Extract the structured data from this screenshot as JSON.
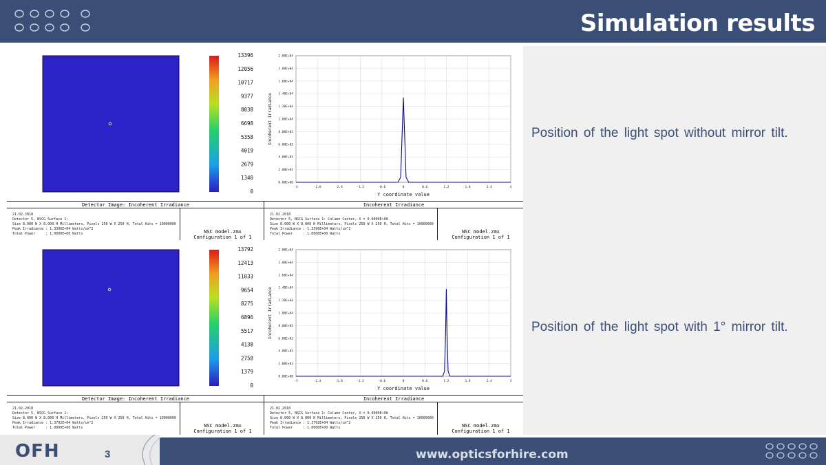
{
  "header": {
    "title": "Simulation results"
  },
  "footer": {
    "logo_text": "OFH",
    "page_number": "3",
    "website": "www.opticsforhire.com"
  },
  "descriptions": [
    "Position of the light spot without mirror tilt.",
    "Position of the light spot with 1° mirror tilt."
  ],
  "colors": {
    "bar": "#3b4e75",
    "detector_bg": "#2d22c8",
    "plot_line": "#0a0a80"
  },
  "figures": [
    {
      "colorbar_labels": [
        "13396",
        "12056",
        "10717",
        "9377",
        "8038",
        "6698",
        "5358",
        "4019",
        "2679",
        "1340",
        "0"
      ],
      "left_caption": "Detector Image: Incoherent Irradiance",
      "right_caption": "Incoherent Irradiance",
      "left_info": "21.02.2018\nDetector 5, NSCG Surface 1:\nSize 8.000 W X 8.000 H Millimeters, Pixels 250 W X 250 H, Total Hits = 10000000\nPeak Irradiance : 1.3396E+04 Watts/cm^2\nTotal Power     : 1.0000E+00 Watts",
      "right_info": "21.02.2018\nDetector 5, NSCG Surface 1: Column Center, X = 0.0000E+00\nSize 8.000 W X 8.000 H Millimeters, Pixels 250 W X 250 H, Total Hits = 10000000\nPeak Irradiance : 1.3396E+04 Watts/cm^2\nTotal Power     : 1.0000E+00 Watts",
      "file_name": "NSC model.zmx",
      "config": "Configuration 1 of 1",
      "plot": {
        "ylabel": "Incoherent Irradiance",
        "xlabel": "Y coordinate value",
        "yticks": [
          "2.00E+04",
          "1.80E+04",
          "1.60E+04",
          "1.40E+04",
          "1.20E+04",
          "1.00E+04",
          "8.00E+03",
          "6.00E+03",
          "4.00E+03",
          "2.00E+03",
          "0.00E+00"
        ],
        "xticks": [
          "-4",
          "-2.8",
          "-2.4",
          "-1.2",
          "-0.6",
          "0",
          "0.6",
          "1.2",
          "1.8",
          "2.4",
          "4"
        ]
      }
    },
    {
      "colorbar_labels": [
        "13792",
        "12413",
        "11033",
        "9654",
        "8275",
        "6896",
        "5517",
        "4138",
        "2758",
        "1379",
        "0"
      ],
      "left_caption": "Detector Image: Incoherent Irradiance",
      "right_caption": "Incoherent Irradiance",
      "left_info": "21.02.2018\nDetector 5, NSCG Surface 1:\nSize 8.000 W X 8.000 H Millimeters, Pixels 250 W X 250 H, Total Hits = 10000000\nPeak Irradiance : 1.3792E+04 Watts/cm^2\nTotal Power     : 1.0000E+00 Watts",
      "right_info": "21.02.2018\nDetector 5, NSCG Surface 1: Column Center, X = 0.0000E+00\nSize 8.000 W X 8.000 H Millimeters, Pixels 250 W X 250 H, Total Hits = 10000000\nPeak Irradiance : 1.3792E+04 Watts/cm^2\nTotal Power     : 1.0000E+00 Watts",
      "file_name": "NSC model.zmx",
      "config": "Configuration 1 of 1",
      "plot": {
        "ylabel": "Incoherent Irradiance",
        "xlabel": "Y coordinate value",
        "yticks": [
          "2.00E+04",
          "1.80E+04",
          "1.60E+04",
          "1.40E+04",
          "1.20E+04",
          "1.00E+04",
          "8.00E+03",
          "6.00E+03",
          "4.00E+03",
          "2.00E+03",
          "0.00E+00"
        ],
        "xticks": [
          "-3",
          "-2.4",
          "-1.8",
          "-1.2",
          "-0.6",
          "0",
          "0.6",
          "1.2",
          "1.8",
          "2.4",
          "3"
        ]
      }
    }
  ],
  "chart_data": [
    {
      "type": "line",
      "title": "Incoherent Irradiance",
      "xlabel": "Y coordinate value",
      "ylabel": "Incoherent Irradiance",
      "xlim": [
        -4,
        4
      ],
      "ylim": [
        0,
        20000
      ],
      "grid": true,
      "x": [
        -4,
        -0.2,
        -0.1,
        -0.05,
        0,
        0.05,
        0.1,
        0.2,
        4
      ],
      "y": [
        0,
        0,
        800,
        7000,
        13396,
        7000,
        800,
        0,
        0
      ]
    },
    {
      "type": "line",
      "title": "Incoherent Irradiance",
      "xlabel": "Y coordinate value",
      "ylabel": "Incoherent Irradiance",
      "xlim": [
        -3,
        3
      ],
      "ylim": [
        0,
        20000
      ],
      "grid": true,
      "x": [
        -3,
        1.1,
        1.15,
        1.18,
        1.2,
        1.22,
        1.25,
        1.3,
        3
      ],
      "y": [
        0,
        0,
        800,
        7000,
        13792,
        7000,
        800,
        0,
        0
      ]
    }
  ]
}
